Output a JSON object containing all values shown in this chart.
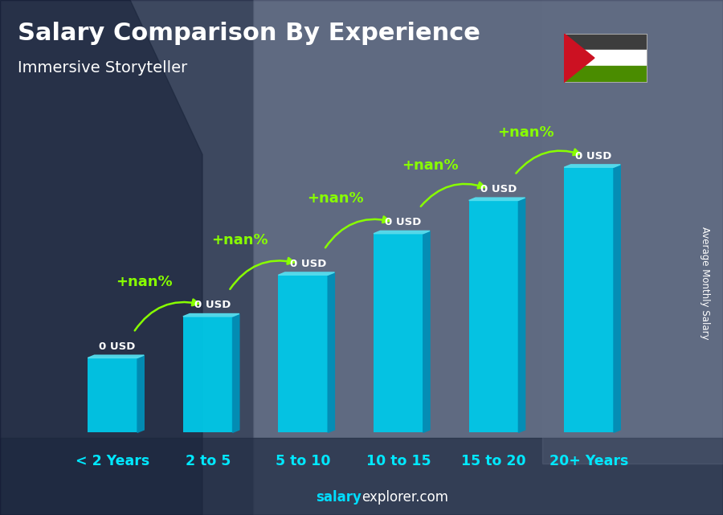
{
  "title": "Salary Comparison By Experience",
  "subtitle": "Immersive Storyteller",
  "categories": [
    "< 2 Years",
    "2 to 5",
    "5 to 10",
    "10 to 15",
    "15 to 20",
    "20+ Years"
  ],
  "bar_values_label": [
    "0 USD",
    "0 USD",
    "0 USD",
    "0 USD",
    "0 USD",
    "0 USD"
  ],
  "pct_labels": [
    "+nan%",
    "+nan%",
    "+nan%",
    "+nan%",
    "+nan%"
  ],
  "heights": [
    1.8,
    2.8,
    3.8,
    4.8,
    5.6,
    6.4
  ],
  "bar_color_front": "#00c8e8",
  "bar_color_right": "#0090b8",
  "bar_color_top": "#55ddee",
  "title_color": "#ffffff",
  "subtitle_color": "#ffffff",
  "xlabel_color": "#00e8ff",
  "ylabel": "Average Monthly Salary",
  "ylabel_color": "#ffffff",
  "annotation_color": "#ffffff",
  "pct_color": "#88ff00",
  "arrow_color": "#88ff00",
  "footer_normal": "explorer.com",
  "footer_bold": "salary",
  "background_color": "#556677",
  "bar_alpha": 0.95,
  "figsize": [
    9.0,
    6.41
  ],
  "flag_colors": [
    "#3d3d3d",
    "#ffffff",
    "#4a8c00"
  ],
  "flag_triangle": "#cc1122"
}
